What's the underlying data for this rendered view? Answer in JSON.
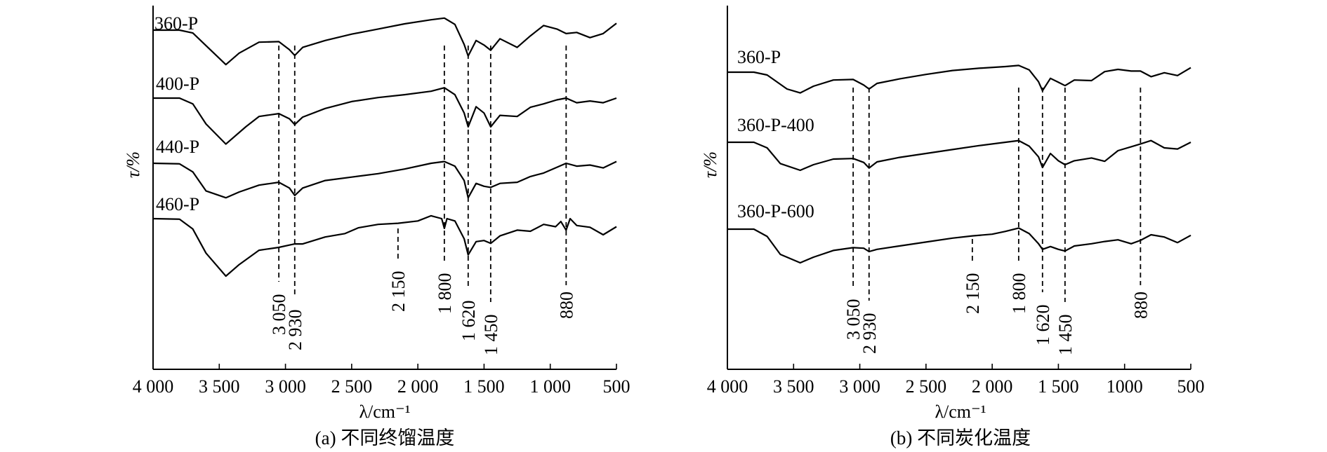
{
  "chart_data": [
    {
      "type": "line",
      "caption": "(a) 不同终馏温度",
      "xlabel": "λ/cm⁻¹",
      "ylabel": "τ/%",
      "xlim": [
        4000,
        500
      ],
      "xticks": [
        4000,
        3500,
        3000,
        2500,
        2000,
        1500,
        1000,
        500
      ],
      "xtick_labels": [
        "4 000",
        "3 500",
        "3 000",
        "2 500",
        "2 000",
        "1 500",
        "1 000",
        "500"
      ],
      "peak_markers": [
        {
          "x": 3050,
          "label": "3 050"
        },
        {
          "x": 2930,
          "label": "2 930"
        },
        {
          "x": 2150,
          "label": "2 150"
        },
        {
          "x": 1800,
          "label": "1 800"
        },
        {
          "x": 1620,
          "label": "1 620"
        },
        {
          "x": 1450,
          "label": "1 450"
        },
        {
          "x": 880,
          "label": "880"
        }
      ],
      "series": [
        {
          "name": "360-P",
          "x": [
            4000,
            3800,
            3700,
            3550,
            3450,
            3350,
            3200,
            3050,
            2970,
            2930,
            2870,
            2700,
            2500,
            2300,
            2100,
            1900,
            1800,
            1720,
            1650,
            1620,
            1560,
            1500,
            1450,
            1380,
            1250,
            1150,
            1050,
            950,
            880,
            800,
            700,
            600,
            500
          ],
          "y": [
            0.0,
            0.0,
            -0.5,
            -3.8,
            -6.0,
            -4.0,
            -2.1,
            -2.0,
            -3.4,
            -4.4,
            -3.0,
            -1.8,
            -0.7,
            0.2,
            1.1,
            1.8,
            2.1,
            1.0,
            -2.5,
            -4.5,
            -1.8,
            -2.6,
            -3.5,
            -1.5,
            -3.0,
            -1.0,
            0.8,
            0.2,
            -0.6,
            -0.4,
            -1.3,
            -0.6,
            1.2
          ]
        },
        {
          "name": "400-P",
          "x": [
            4000,
            3800,
            3700,
            3600,
            3450,
            3300,
            3200,
            3050,
            2970,
            2930,
            2870,
            2700,
            2500,
            2300,
            2100,
            1900,
            1800,
            1720,
            1650,
            1620,
            1560,
            1500,
            1450,
            1380,
            1250,
            1150,
            1050,
            950,
            880,
            800,
            700,
            600,
            500
          ],
          "y": [
            0.0,
            0.0,
            -1.0,
            -4.5,
            -8.0,
            -5.0,
            -3.2,
            -2.7,
            -3.6,
            -4.6,
            -3.3,
            -1.8,
            -0.6,
            0.1,
            0.6,
            1.2,
            1.8,
            0.6,
            -2.6,
            -5.0,
            -1.5,
            -2.6,
            -5.0,
            -3.0,
            -3.2,
            -1.6,
            -1.0,
            -0.3,
            0.0,
            -0.8,
            -0.5,
            -0.8,
            0.0
          ]
        },
        {
          "name": "440-P",
          "x": [
            4000,
            3800,
            3700,
            3600,
            3450,
            3350,
            3200,
            3050,
            2970,
            2930,
            2870,
            2700,
            2500,
            2300,
            2100,
            1900,
            1800,
            1720,
            1650,
            1620,
            1560,
            1500,
            1450,
            1380,
            1250,
            1150,
            1050,
            950,
            880,
            800,
            700,
            600,
            500
          ],
          "y": [
            0.0,
            -0.1,
            -1.5,
            -4.8,
            -6.0,
            -5.0,
            -3.8,
            -3.3,
            -4.3,
            -5.6,
            -4.3,
            -3.0,
            -2.4,
            -1.8,
            -1.0,
            0.0,
            0.3,
            -0.5,
            -3.0,
            -6.0,
            -3.5,
            -4.0,
            -4.2,
            -3.5,
            -3.3,
            -2.3,
            -1.7,
            -0.7,
            0.0,
            -0.5,
            -0.3,
            -0.8,
            0.3
          ]
        },
        {
          "name": "460-P",
          "x": [
            4000,
            3800,
            3700,
            3600,
            3450,
            3350,
            3200,
            3050,
            2970,
            2930,
            2870,
            2700,
            2550,
            2450,
            2300,
            2150,
            2000,
            1900,
            1820,
            1800,
            1780,
            1720,
            1650,
            1620,
            1560,
            1500,
            1450,
            1380,
            1250,
            1150,
            1050,
            960,
            920,
            880,
            850,
            800,
            700,
            600,
            500
          ],
          "y": [
            0.0,
            -0.1,
            -1.8,
            -6.0,
            -10.0,
            -8.0,
            -5.5,
            -5.0,
            -4.6,
            -4.4,
            -4.4,
            -3.2,
            -2.6,
            -1.6,
            -1.0,
            -0.8,
            -0.4,
            0.5,
            0.0,
            -1.7,
            0.0,
            -0.4,
            -3.5,
            -6.3,
            -4.0,
            -3.8,
            -4.3,
            -3.0,
            -2.0,
            -2.2,
            -1.0,
            -1.4,
            -0.5,
            -2.0,
            0.0,
            -1.2,
            -1.5,
            -2.8,
            -1.4
          ]
        }
      ]
    },
    {
      "type": "line",
      "caption": "(b) 不同炭化温度",
      "xlabel": "λ/cm⁻¹",
      "ylabel": "τ/%",
      "xlim": [
        4000,
        500
      ],
      "xticks": [
        4000,
        3500,
        3000,
        2500,
        2000,
        1500,
        1000,
        500
      ],
      "xtick_labels": [
        "4 000",
        "3 500",
        "3 000",
        "2 500",
        "2 000",
        "1 500",
        "1000",
        "500"
      ],
      "peak_markers": [
        {
          "x": 3050,
          "label": "3 050"
        },
        {
          "x": 2930,
          "label": "2 930"
        },
        {
          "x": 2150,
          "label": "2 150"
        },
        {
          "x": 1800,
          "label": "1 800"
        },
        {
          "x": 1620,
          "label": "1 620"
        },
        {
          "x": 1450,
          "label": "1 450"
        },
        {
          "x": 880,
          "label": "880"
        }
      ],
      "series": [
        {
          "name": "360-P",
          "x": [
            4000,
            3800,
            3700,
            3550,
            3450,
            3350,
            3200,
            3050,
            2970,
            2930,
            2870,
            2700,
            2500,
            2300,
            2100,
            1900,
            1800,
            1720,
            1650,
            1620,
            1560,
            1500,
            1450,
            1380,
            1250,
            1150,
            1050,
            950,
            880,
            800,
            700,
            600,
            500
          ],
          "y": [
            0.0,
            0.0,
            -0.5,
            -3.0,
            -3.7,
            -2.5,
            -1.4,
            -1.3,
            -2.3,
            -3.0,
            -2.0,
            -1.2,
            -0.4,
            0.3,
            0.7,
            1.0,
            1.2,
            0.4,
            -1.7,
            -3.3,
            -1.1,
            -1.8,
            -2.4,
            -1.4,
            -1.5,
            0.1,
            0.5,
            0.2,
            0.2,
            -0.8,
            -0.1,
            -0.6,
            0.8
          ]
        },
        {
          "name": "360-P-400",
          "x": [
            4000,
            3800,
            3700,
            3600,
            3450,
            3350,
            3200,
            3050,
            2970,
            2930,
            2870,
            2700,
            2500,
            2300,
            2100,
            1900,
            1800,
            1720,
            1650,
            1620,
            1560,
            1500,
            1450,
            1380,
            1250,
            1150,
            1050,
            950,
            880,
            800,
            700,
            600,
            500
          ],
          "y": [
            0.0,
            0.0,
            -1.0,
            -3.8,
            -5.0,
            -4.0,
            -3.0,
            -2.9,
            -3.6,
            -4.6,
            -3.5,
            -2.7,
            -2.0,
            -1.3,
            -0.6,
            0.0,
            0.3,
            -0.7,
            -2.6,
            -4.5,
            -2.0,
            -3.3,
            -4.0,
            -3.3,
            -2.8,
            -3.4,
            -1.5,
            -0.8,
            -0.3,
            0.3,
            -1.0,
            -1.2,
            0.0
          ]
        },
        {
          "name": "360-P-600",
          "x": [
            4000,
            3800,
            3700,
            3600,
            3450,
            3350,
            3200,
            3050,
            2970,
            2930,
            2870,
            2700,
            2500,
            2300,
            2150,
            2000,
            1900,
            1800,
            1720,
            1650,
            1620,
            1560,
            1500,
            1450,
            1380,
            1250,
            1150,
            1050,
            950,
            880,
            800,
            700,
            600,
            500
          ],
          "y": [
            0.0,
            0.0,
            -1.3,
            -4.5,
            -6.0,
            -5.0,
            -3.8,
            -3.3,
            -3.4,
            -4.0,
            -3.6,
            -3.0,
            -2.3,
            -1.6,
            -1.2,
            -0.9,
            -0.4,
            0.2,
            -0.8,
            -2.6,
            -3.6,
            -3.1,
            -3.6,
            -3.9,
            -3.0,
            -2.6,
            -2.2,
            -1.9,
            -2.6,
            -2.0,
            -1.0,
            -1.4,
            -2.4,
            -1.1
          ]
        }
      ]
    }
  ]
}
